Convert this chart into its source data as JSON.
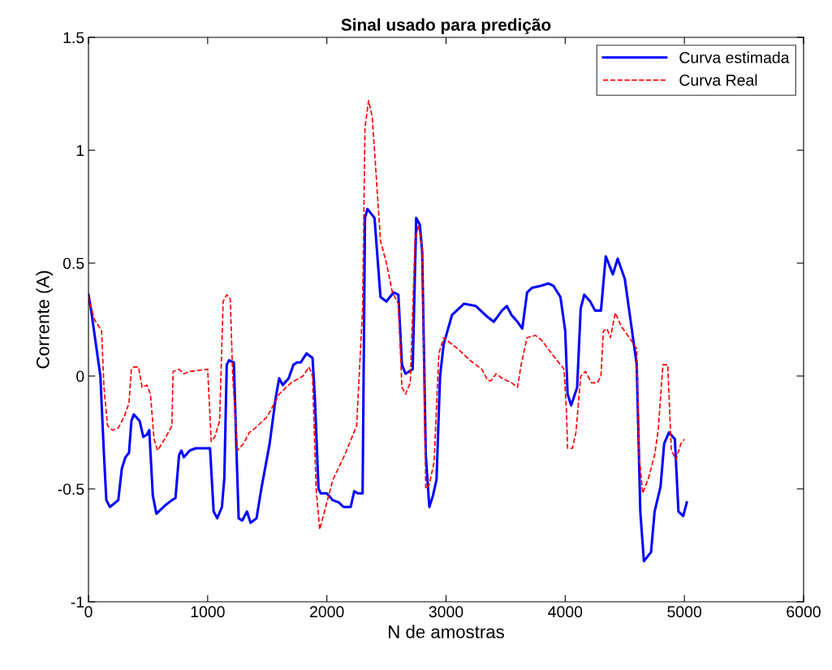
{
  "chart_data": {
    "type": "line",
    "title": "Sinal usado para predição",
    "xlabel": "N de amostras",
    "ylabel": "Corrente (A)",
    "xlim": [
      0,
      6000
    ],
    "xticks": [
      0,
      1000,
      2000,
      3000,
      4000,
      5000,
      6000
    ],
    "ylim": [
      -1,
      1.5
    ],
    "yticks": [
      -1,
      -0.5,
      0,
      0.5,
      1,
      1.5
    ],
    "grid": false,
    "legend": "top right",
    "series": [
      {
        "name": "Curva estimada",
        "color": "#0000ff",
        "line_style": "solid",
        "x": [
          0,
          20,
          100,
          130,
          150,
          180,
          250,
          280,
          310,
          340,
          360,
          380,
          430,
          460,
          490,
          510,
          540,
          570,
          650,
          700,
          730,
          760,
          780,
          800,
          850,
          900,
          1000,
          1020,
          1050,
          1080,
          1120,
          1140,
          1160,
          1180,
          1220,
          1240,
          1260,
          1290,
          1330,
          1360,
          1410,
          1450,
          1520,
          1570,
          1600,
          1630,
          1680,
          1720,
          1750,
          1780,
          1830,
          1880,
          1900,
          1930,
          1950,
          2000,
          2050,
          2100,
          2140,
          2200,
          2230,
          2260,
          2300,
          2320,
          2340,
          2400,
          2450,
          2500,
          2560,
          2600,
          2630,
          2660,
          2720,
          2750,
          2780,
          2800,
          2830,
          2860,
          2890,
          2920,
          2950,
          2980,
          3050,
          3150,
          3250,
          3330,
          3400,
          3470,
          3510,
          3550,
          3600,
          3640,
          3680,
          3720,
          3800,
          3860,
          3900,
          3960,
          4000,
          4020,
          4050,
          4100,
          4130,
          4160,
          4210,
          4250,
          4300,
          4340,
          4400,
          4440,
          4500,
          4550,
          4600,
          4630,
          4660,
          4720,
          4750,
          4800,
          4830,
          4870,
          4920,
          4950,
          4990,
          5020
        ],
        "values": [
          0.36,
          0.3,
          0.0,
          -0.35,
          -0.55,
          -0.58,
          -0.55,
          -0.41,
          -0.36,
          -0.34,
          -0.2,
          -0.17,
          -0.2,
          -0.27,
          -0.26,
          -0.24,
          -0.53,
          -0.61,
          -0.57,
          -0.55,
          -0.54,
          -0.35,
          -0.33,
          -0.36,
          -0.33,
          -0.32,
          -0.32,
          -0.32,
          -0.6,
          -0.63,
          -0.58,
          -0.45,
          0.05,
          0.07,
          0.06,
          -0.3,
          -0.63,
          -0.64,
          -0.6,
          -0.65,
          -0.63,
          -0.5,
          -0.3,
          -0.1,
          -0.01,
          -0.04,
          -0.01,
          0.05,
          0.06,
          0.06,
          0.1,
          0.08,
          -0.1,
          -0.5,
          -0.52,
          -0.52,
          -0.55,
          -0.56,
          -0.58,
          -0.58,
          -0.51,
          -0.52,
          -0.52,
          0.7,
          0.74,
          0.7,
          0.35,
          0.33,
          0.37,
          0.36,
          0.05,
          0.01,
          0.03,
          0.7,
          0.67,
          0.55,
          -0.35,
          -0.58,
          -0.53,
          -0.46,
          0.0,
          0.14,
          0.27,
          0.32,
          0.31,
          0.27,
          0.24,
          0.29,
          0.31,
          0.27,
          0.24,
          0.21,
          0.37,
          0.39,
          0.4,
          0.41,
          0.4,
          0.35,
          0.2,
          -0.08,
          -0.13,
          -0.05,
          0.3,
          0.36,
          0.33,
          0.29,
          0.29,
          0.53,
          0.45,
          0.52,
          0.43,
          0.24,
          0.05,
          -0.6,
          -0.82,
          -0.78,
          -0.6,
          -0.49,
          -0.3,
          -0.25,
          -0.28,
          -0.6,
          -0.62,
          -0.56
        ]
      },
      {
        "name": "Curva Real",
        "color": "#ff0000",
        "line_style": "dashed",
        "x": [
          0,
          50,
          110,
          130,
          160,
          200,
          250,
          300,
          340,
          360,
          380,
          420,
          450,
          490,
          520,
          550,
          580,
          650,
          700,
          710,
          760,
          800,
          850,
          1000,
          1030,
          1060,
          1100,
          1130,
          1160,
          1190,
          1210,
          1250,
          1300,
          1350,
          1400,
          1500,
          1600,
          1700,
          1800,
          1850,
          1880,
          1910,
          1940,
          1980,
          2050,
          2150,
          2250,
          2300,
          2320,
          2350,
          2380,
          2400,
          2450,
          2500,
          2550,
          2600,
          2630,
          2660,
          2700,
          2740,
          2770,
          2800,
          2830,
          2860,
          2900,
          2940,
          2980,
          3100,
          3200,
          3300,
          3350,
          3380,
          3420,
          3470,
          3550,
          3600,
          3630,
          3680,
          3750,
          3800,
          3900,
          3990,
          4010,
          4020,
          4060,
          4090,
          4130,
          4170,
          4220,
          4270,
          4300,
          4320,
          4350,
          4380,
          4420,
          4470,
          4550,
          4600,
          4620,
          4650,
          4700,
          4750,
          4780,
          4820,
          4860,
          4890,
          4930,
          4970,
          5000
        ],
        "values": [
          0.35,
          0.25,
          0.2,
          -0.05,
          -0.22,
          -0.24,
          -0.23,
          -0.18,
          -0.12,
          0.03,
          0.04,
          0.04,
          -0.05,
          -0.04,
          -0.08,
          -0.28,
          -0.33,
          -0.27,
          -0.22,
          0.02,
          0.03,
          0.01,
          0.02,
          0.03,
          -0.29,
          -0.27,
          -0.2,
          0.33,
          0.36,
          0.34,
          0.0,
          -0.33,
          -0.3,
          -0.25,
          -0.23,
          -0.18,
          -0.08,
          -0.03,
          0.0,
          0.04,
          0.0,
          -0.5,
          -0.68,
          -0.6,
          -0.46,
          -0.35,
          -0.22,
          0.3,
          1.1,
          1.22,
          1.15,
          1.0,
          0.6,
          0.5,
          0.37,
          0.32,
          -0.05,
          -0.08,
          -0.03,
          0.6,
          0.67,
          0.56,
          -0.5,
          -0.48,
          -0.38,
          0.1,
          0.17,
          0.12,
          0.07,
          0.03,
          -0.02,
          -0.02,
          0.01,
          -0.01,
          -0.03,
          -0.05,
          0.05,
          0.17,
          0.18,
          0.16,
          0.09,
          0.03,
          -0.15,
          -0.32,
          -0.32,
          -0.25,
          0.0,
          0.02,
          -0.03,
          -0.03,
          0.0,
          0.2,
          0.21,
          0.17,
          0.28,
          0.22,
          0.16,
          0.12,
          -0.35,
          -0.52,
          -0.45,
          -0.35,
          -0.24,
          0.05,
          0.05,
          -0.33,
          -0.37,
          -0.3,
          -0.28
        ]
      }
    ]
  }
}
